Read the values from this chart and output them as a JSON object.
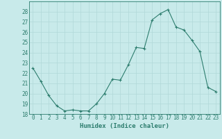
{
  "x": [
    0,
    1,
    2,
    3,
    4,
    5,
    6,
    7,
    8,
    9,
    10,
    11,
    12,
    13,
    14,
    15,
    16,
    17,
    18,
    19,
    20,
    21,
    22,
    23
  ],
  "y": [
    22.5,
    21.2,
    19.8,
    18.8,
    18.3,
    18.4,
    18.3,
    18.3,
    19.0,
    20.0,
    21.4,
    21.3,
    22.8,
    24.5,
    24.4,
    27.2,
    27.8,
    28.2,
    26.5,
    26.2,
    25.2,
    24.1,
    20.6,
    20.2
  ],
  "line_color": "#2d7d6e",
  "marker": "+",
  "marker_size": 3,
  "bg_color": "#c8eaea",
  "grid_color": "#b0d8d8",
  "tick_color": "#2d7d6e",
  "xlabel": "Humidex (Indice chaleur)",
  "ylim": [
    18,
    29
  ],
  "xlim_min": -0.5,
  "xlim_max": 23.5,
  "yticks": [
    18,
    19,
    20,
    21,
    22,
    23,
    24,
    25,
    26,
    27,
    28
  ],
  "xticks": [
    0,
    1,
    2,
    3,
    4,
    5,
    6,
    7,
    8,
    9,
    10,
    11,
    12,
    13,
    14,
    15,
    16,
    17,
    18,
    19,
    20,
    21,
    22,
    23
  ],
  "xtick_labels": [
    "0",
    "1",
    "2",
    "3",
    "4",
    "5",
    "6",
    "7",
    "8",
    "9",
    "10",
    "11",
    "12",
    "13",
    "14",
    "15",
    "16",
    "17",
    "18",
    "19",
    "20",
    "21",
    "22",
    "23"
  ],
  "ytick_labels": [
    "18",
    "19",
    "20",
    "21",
    "22",
    "23",
    "24",
    "25",
    "26",
    "27",
    "28"
  ],
  "xlabel_fontsize": 6.5,
  "tick_fontsize": 5.5,
  "linewidth": 0.8,
  "marker_edge_width": 0.8
}
